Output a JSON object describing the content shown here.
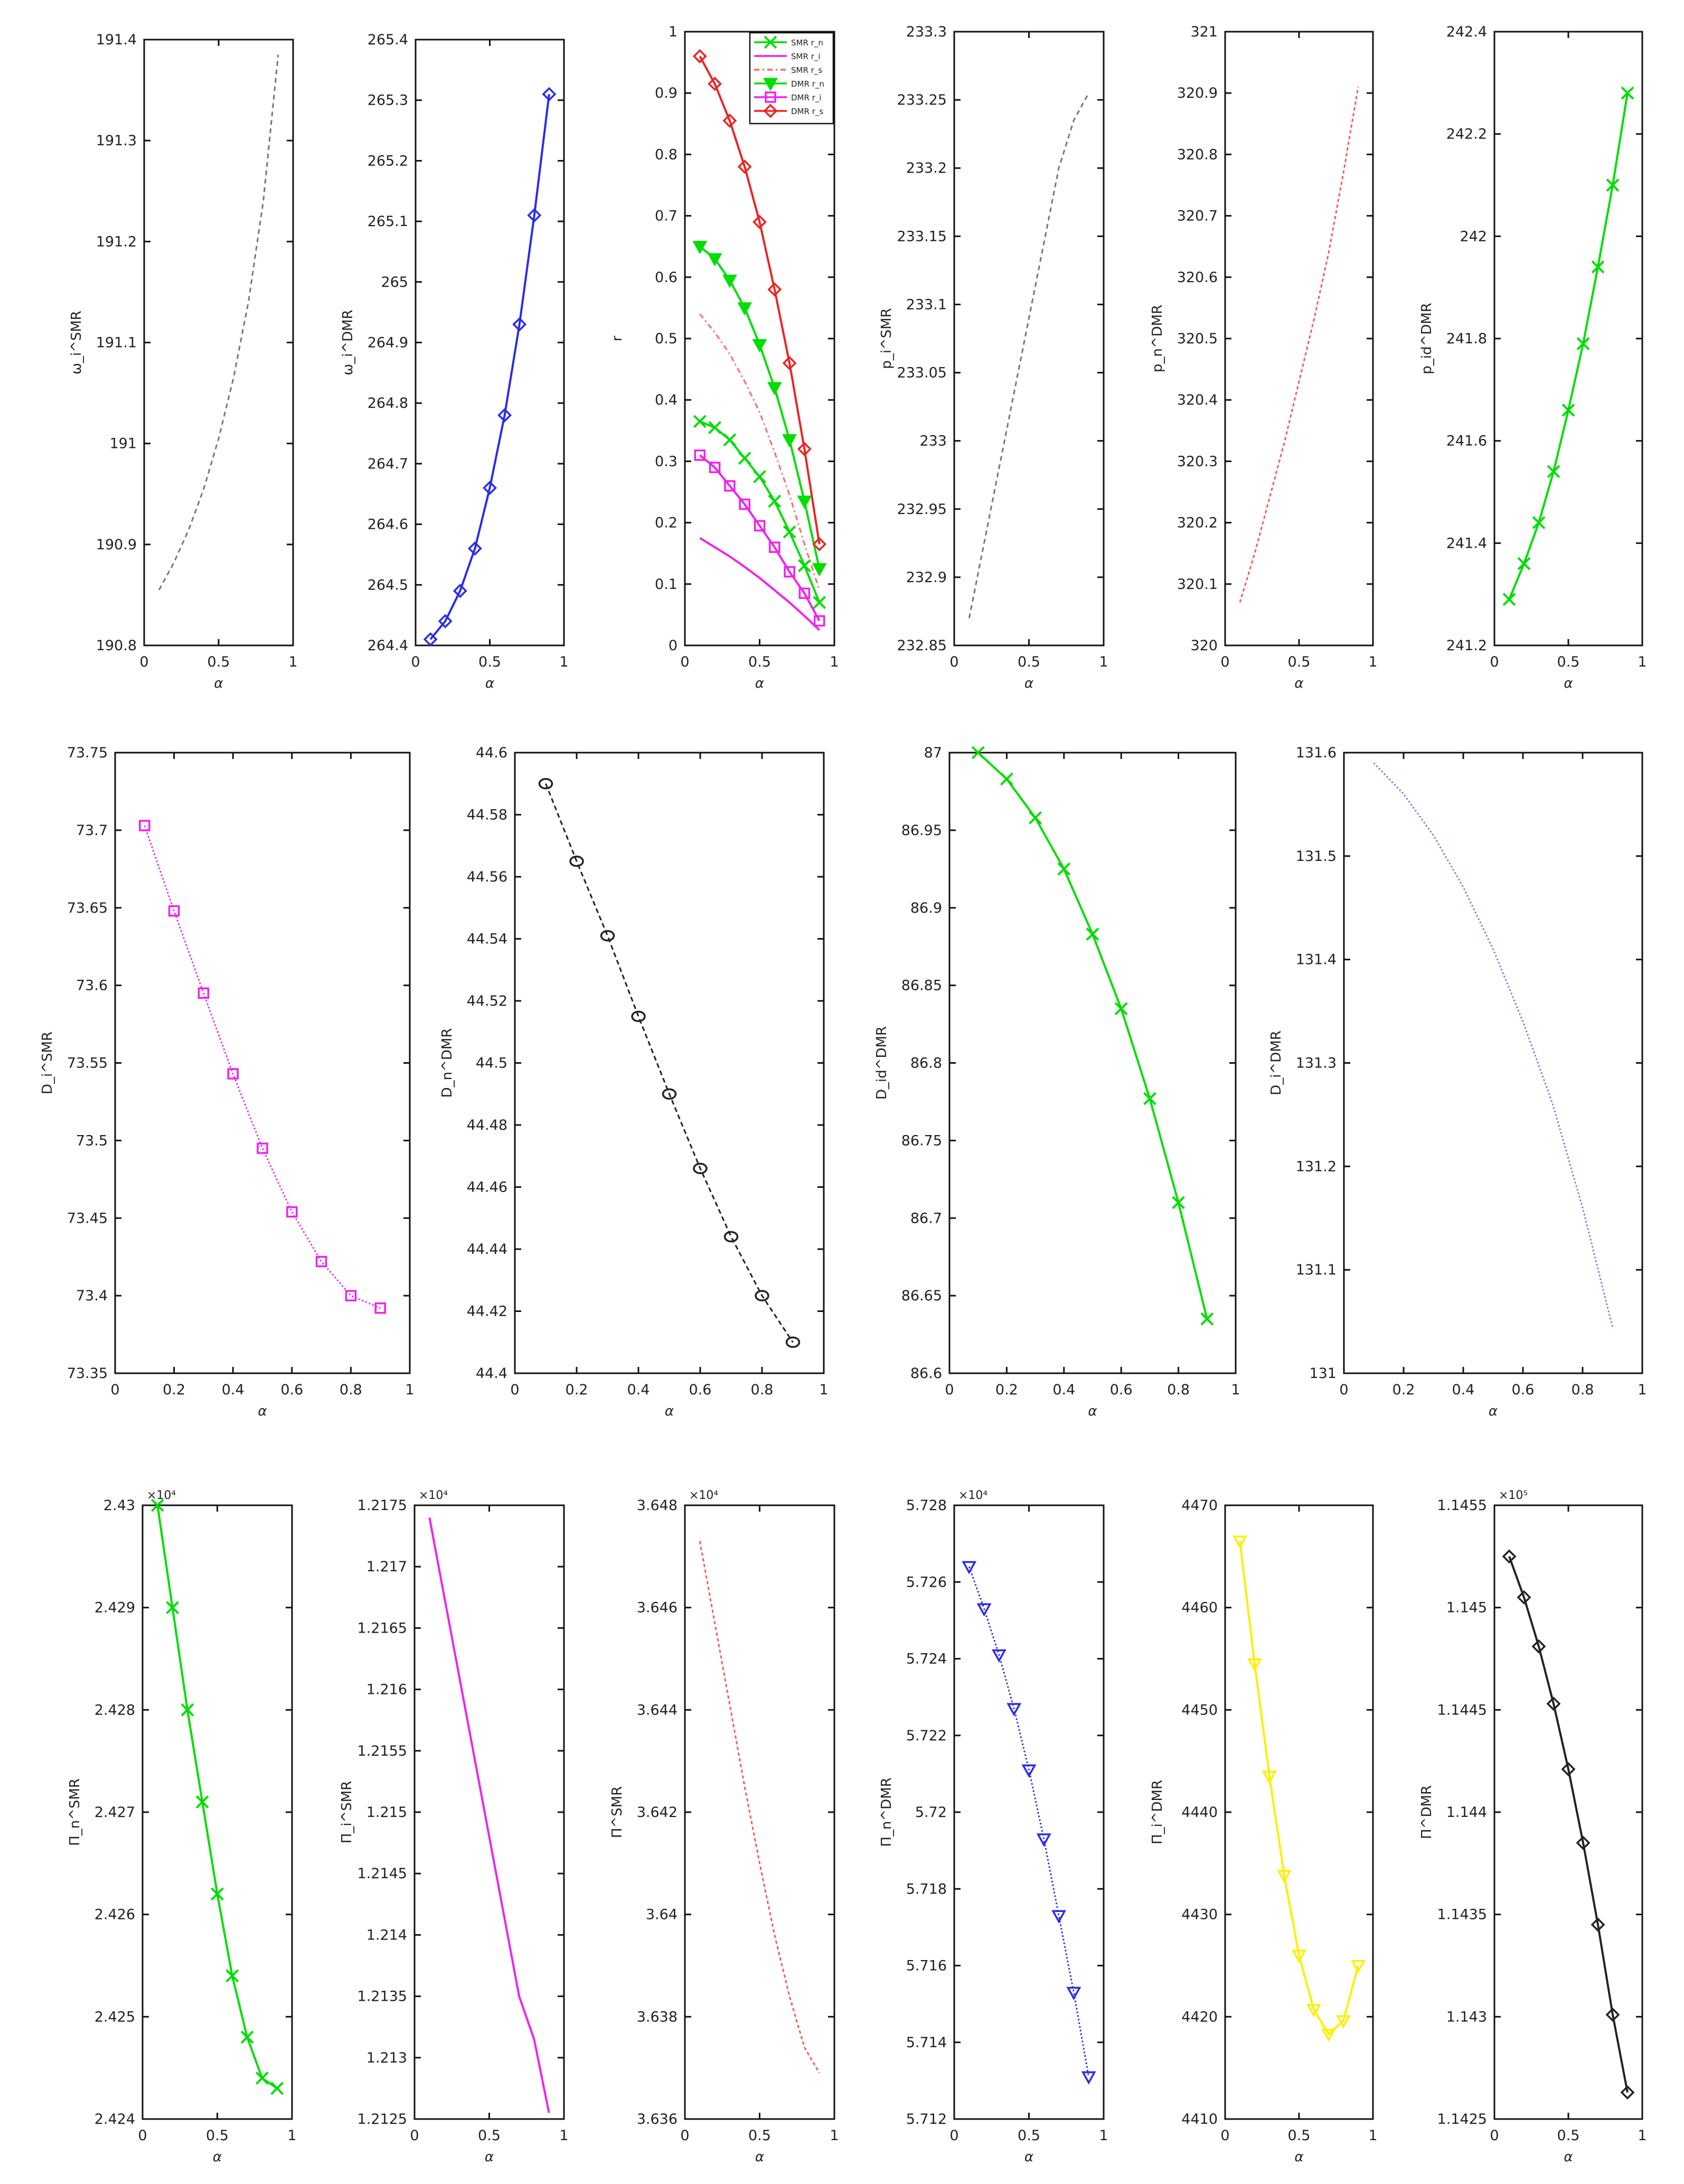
{
  "figure": {
    "title": "",
    "x_label_all": "α"
  },
  "chart_data": [
    {
      "id": "p1",
      "type": "line",
      "ylabel": "ω_i^SMR",
      "x": [
        0.1,
        0.2,
        0.3,
        0.4,
        0.5,
        0.6,
        0.7,
        0.8,
        0.9
      ],
      "y": [
        190.855,
        190.882,
        190.915,
        190.955,
        191.005,
        191.065,
        191.14,
        191.24,
        191.385
      ],
      "xlim": [
        0,
        1
      ],
      "ylim": [
        190.8,
        191.4
      ],
      "xticks": [
        "0",
        "0.5",
        "1"
      ],
      "yticks": [
        "190.8",
        "190.9",
        "191",
        "191.1",
        "191.2",
        "191.3",
        "191.4"
      ],
      "color": "#777777",
      "dash": "9,7",
      "marker": "none"
    },
    {
      "id": "p2",
      "type": "line",
      "ylabel": "ω_i^DMR",
      "x": [
        0.1,
        0.2,
        0.3,
        0.4,
        0.5,
        0.6,
        0.7,
        0.8,
        0.9
      ],
      "y": [
        264.41,
        264.44,
        264.49,
        264.56,
        264.66,
        264.78,
        264.93,
        265.11,
        265.31
      ],
      "xlim": [
        0,
        1
      ],
      "ylim": [
        264.4,
        265.4
      ],
      "xticks": [
        "0",
        "0.5",
        "1"
      ],
      "yticks": [
        "264.4",
        "264.5",
        "264.6",
        "264.7",
        "264.8",
        "264.9",
        "265",
        "265.1",
        "265.2",
        "265.3",
        "265.4"
      ],
      "color": "#2a2aee",
      "dash": "",
      "marker": "diamond"
    },
    {
      "id": "p3",
      "type": "line",
      "ylabel": "r",
      "x": [
        0.1,
        0.2,
        0.3,
        0.4,
        0.5,
        0.6,
        0.7,
        0.8,
        0.9
      ],
      "xlim": [
        0,
        1
      ],
      "ylim": [
        0,
        1
      ],
      "xticks": [
        "0",
        "0.5",
        "1"
      ],
      "yticks": [
        "0",
        "0.1",
        "0.2",
        "0.3",
        "0.4",
        "0.5",
        "0.6",
        "0.7",
        "0.8",
        "0.9",
        "1"
      ],
      "legend_position": "top-right",
      "series": [
        {
          "name": "SMR r_n",
          "color": "#00dd00",
          "dash": "",
          "marker": "x",
          "values": [
            0.365,
            0.355,
            0.335,
            0.305,
            0.275,
            0.235,
            0.185,
            0.13,
            0.07
          ]
        },
        {
          "name": "SMR r_i",
          "color": "#ee22ee",
          "dash": "",
          "marker": "none",
          "values": [
            0.175,
            0.16,
            0.145,
            0.128,
            0.11,
            0.09,
            0.07,
            0.048,
            0.025
          ]
        },
        {
          "name": "SMR r_s",
          "color": "#ff6666",
          "dash": "10,6,3,6",
          "marker": "none",
          "values": [
            0.54,
            0.51,
            0.475,
            0.43,
            0.38,
            0.315,
            0.245,
            0.165,
            0.09
          ]
        },
        {
          "name": "DMR r_n",
          "color": "#00dd00",
          "dash": "",
          "marker": "triangle-down",
          "values": [
            0.65,
            0.63,
            0.595,
            0.55,
            0.49,
            0.42,
            0.335,
            0.235,
            0.125
          ]
        },
        {
          "name": "DMR r_i",
          "color": "#ee22ee",
          "dash": "",
          "marker": "square",
          "values": [
            0.31,
            0.29,
            0.26,
            0.23,
            0.195,
            0.16,
            0.12,
            0.085,
            0.04
          ]
        },
        {
          "name": "DMR r_s",
          "color": "#ee2222",
          "dash": "",
          "marker": "diamond",
          "values": [
            0.96,
            0.915,
            0.855,
            0.78,
            0.69,
            0.58,
            0.46,
            0.32,
            0.165
          ]
        }
      ]
    },
    {
      "id": "p4",
      "type": "line",
      "ylabel": "p_i^SMR",
      "x": [
        0.1,
        0.2,
        0.3,
        0.4,
        0.5,
        0.6,
        0.7,
        0.8,
        0.9
      ],
      "y": [
        232.87,
        232.925,
        232.98,
        233.035,
        233.09,
        233.145,
        233.2,
        233.235,
        233.255
      ],
      "xlim": [
        0,
        1
      ],
      "ylim": [
        232.85,
        233.3
      ],
      "xticks": [
        "0",
        "0.5",
        "1"
      ],
      "yticks": [
        "232.85",
        "232.9",
        "232.95",
        "233",
        "233.05",
        "233.1",
        "233.15",
        "233.2",
        "233.25",
        "233.3"
      ],
      "color": "#777777",
      "dash": "9,7",
      "marker": "none"
    },
    {
      "id": "p5",
      "type": "line",
      "ylabel": "p_n^DMR",
      "x": [
        0.1,
        0.2,
        0.3,
        0.4,
        0.5,
        0.6,
        0.7,
        0.8,
        0.9
      ],
      "y": [
        320.07,
        320.15,
        320.24,
        320.33,
        320.43,
        320.53,
        320.64,
        320.77,
        320.91
      ],
      "xlim": [
        0,
        1
      ],
      "ylim": [
        320,
        321
      ],
      "xticks": [
        "0",
        "0.5",
        "1"
      ],
      "yticks": [
        "320",
        "320.1",
        "320.2",
        "320.3",
        "320.4",
        "320.5",
        "320.6",
        "320.7",
        "320.8",
        "320.9",
        "321"
      ],
      "color": "#ff5555",
      "dash": "6,5",
      "marker": "none"
    },
    {
      "id": "p6",
      "type": "line",
      "ylabel": "p_id^DMR",
      "x": [
        0.1,
        0.2,
        0.3,
        0.4,
        0.5,
        0.6,
        0.7,
        0.8,
        0.9
      ],
      "y": [
        241.29,
        241.36,
        241.44,
        241.54,
        241.66,
        241.79,
        241.94,
        242.1,
        242.28
      ],
      "xlim": [
        0,
        1
      ],
      "ylim": [
        241.2,
        242.4
      ],
      "xticks": [
        "0",
        "0.5",
        "1"
      ],
      "yticks": [
        "241.2",
        "241.4",
        "241.6",
        "241.8",
        "242",
        "242.2",
        "242.4"
      ],
      "color": "#00dd00",
      "dash": "",
      "marker": "x"
    },
    {
      "id": "p7",
      "type": "line",
      "ylabel": "D_i^SMR",
      "x": [
        0.1,
        0.2,
        0.3,
        0.4,
        0.5,
        0.6,
        0.7,
        0.8,
        0.9
      ],
      "y": [
        73.703,
        73.648,
        73.595,
        73.543,
        73.495,
        73.454,
        73.422,
        73.4,
        73.392
      ],
      "xlim": [
        0,
        1
      ],
      "ylim": [
        73.35,
        73.75
      ],
      "xticks": [
        "0",
        "0.2",
        "0.4",
        "0.6",
        "0.8",
        "1"
      ],
      "yticks": [
        "73.35",
        "73.4",
        "73.45",
        "73.5",
        "73.55",
        "73.6",
        "73.65",
        "73.7",
        "73.75"
      ],
      "color": "#ee22ee",
      "dash": "3,4",
      "marker": "square"
    },
    {
      "id": "p8",
      "type": "line",
      "ylabel": "D_n^DMR",
      "x": [
        0.1,
        0.2,
        0.3,
        0.4,
        0.5,
        0.6,
        0.7,
        0.8,
        0.9
      ],
      "y": [
        44.59,
        44.565,
        44.541,
        44.515,
        44.49,
        44.466,
        44.444,
        44.425,
        44.41
      ],
      "xlim": [
        0,
        1
      ],
      "ylim": [
        44.4,
        44.6
      ],
      "xticks": [
        "0",
        "0.2",
        "0.4",
        "0.6",
        "0.8",
        "1"
      ],
      "yticks": [
        "44.4",
        "44.42",
        "44.44",
        "44.46",
        "44.48",
        "44.5",
        "44.52",
        "44.54",
        "44.56",
        "44.58",
        "44.6"
      ],
      "color": "#222222",
      "dash": "9,6",
      "marker": "circle"
    },
    {
      "id": "p9",
      "type": "line",
      "ylabel": "D_id^DMR",
      "x": [
        0.1,
        0.2,
        0.3,
        0.4,
        0.5,
        0.6,
        0.7,
        0.8,
        0.9
      ],
      "y": [
        87.0,
        86.983,
        86.958,
        86.925,
        86.883,
        86.835,
        86.777,
        86.71,
        86.635
      ],
      "xlim": [
        0,
        1
      ],
      "ylim": [
        86.6,
        87
      ],
      "xticks": [
        "0",
        "0.2",
        "0.4",
        "0.6",
        "0.8",
        "1"
      ],
      "yticks": [
        "86.6",
        "86.65",
        "86.7",
        "86.75",
        "86.8",
        "86.85",
        "86.9",
        "86.95",
        "87"
      ],
      "color": "#00dd00",
      "dash": "",
      "marker": "x"
    },
    {
      "id": "p10",
      "type": "line",
      "ylabel": "D_i^DMR",
      "x": [
        0.1,
        0.2,
        0.3,
        0.4,
        0.5,
        0.6,
        0.7,
        0.8,
        0.9
      ],
      "y": [
        131.59,
        131.56,
        131.52,
        131.47,
        131.41,
        131.34,
        131.26,
        131.16,
        131.045
      ],
      "xlim": [
        0,
        1
      ],
      "ylim": [
        131,
        131.6
      ],
      "xticks": [
        "0",
        "0.2",
        "0.4",
        "0.6",
        "0.8",
        "1"
      ],
      "yticks": [
        "131",
        "131.1",
        "131.2",
        "131.3",
        "131.4",
        "131.5",
        "131.6"
      ],
      "color": "#7777ee",
      "dash": "3,4",
      "marker": "none"
    },
    {
      "id": "p11",
      "type": "line",
      "ylabel": "Π_n^SMR",
      "multiplier": "×10⁴",
      "x": [
        0.1,
        0.2,
        0.3,
        0.4,
        0.5,
        0.6,
        0.7,
        0.8,
        0.9
      ],
      "y": [
        2.43,
        2.429,
        2.428,
        2.4271,
        2.4262,
        2.4254,
        2.4248,
        2.4244,
        2.4243
      ],
      "xlim": [
        0,
        1
      ],
      "ylim": [
        2.424,
        2.43
      ],
      "xticks": [
        "0",
        "0.5",
        "1"
      ],
      "yticks": [
        "2.424",
        "2.425",
        "2.426",
        "2.427",
        "2.428",
        "2.429",
        "2.43"
      ],
      "color": "#00dd00",
      "dash": "",
      "marker": "x"
    },
    {
      "id": "p12",
      "type": "line",
      "ylabel": "Π_i^SMR",
      "multiplier": "×10⁴",
      "x": [
        0.1,
        0.2,
        0.3,
        0.4,
        0.5,
        0.6,
        0.7,
        0.8,
        0.9
      ],
      "y": [
        1.2174,
        1.21675,
        1.2161,
        1.21545,
        1.2148,
        1.21415,
        1.2135,
        1.21315,
        1.21255
      ],
      "xlim": [
        0,
        1
      ],
      "ylim": [
        1.2125,
        1.2175
      ],
      "xticks": [
        "0",
        "0.5",
        "1"
      ],
      "yticks": [
        "1.2125",
        "1.213",
        "1.2135",
        "1.214",
        "1.2145",
        "1.215",
        "1.2155",
        "1.216",
        "1.2165",
        "1.217",
        "1.2175"
      ],
      "color": "#ee22ee",
      "dash": "",
      "marker": "none"
    },
    {
      "id": "p13",
      "type": "line",
      "ylabel": "Π^SMR",
      "multiplier": "×10⁴",
      "x": [
        0.1,
        0.2,
        0.3,
        0.4,
        0.5,
        0.6,
        0.7,
        0.8,
        0.9
      ],
      "y": [
        3.6473,
        3.6457,
        3.6441,
        3.6425,
        3.641,
        3.6396,
        3.6384,
        3.6374,
        3.6369
      ],
      "xlim": [
        0,
        1
      ],
      "ylim": [
        3.636,
        3.648
      ],
      "xticks": [
        "0",
        "0.5",
        "1"
      ],
      "yticks": [
        "3.636",
        "3.638",
        "3.64",
        "3.642",
        "3.644",
        "3.646",
        "3.648"
      ],
      "color": "#ff5555",
      "dash": "6,5",
      "marker": "none"
    },
    {
      "id": "p14",
      "type": "line",
      "ylabel": "Π_n^DMR",
      "multiplier": "×10⁴",
      "x": [
        0.1,
        0.2,
        0.3,
        0.4,
        0.5,
        0.6,
        0.7,
        0.8,
        0.9
      ],
      "y": [
        5.7264,
        5.7253,
        5.7241,
        5.7227,
        5.7211,
        5.7193,
        5.7173,
        5.7153,
        5.7131
      ],
      "xlim": [
        0,
        1
      ],
      "ylim": [
        5.712,
        5.728
      ],
      "xticks": [
        "0",
        "0.5",
        "1"
      ],
      "yticks": [
        "5.712",
        "5.714",
        "5.716",
        "5.718",
        "5.72",
        "5.722",
        "5.724",
        "5.726",
        "5.728"
      ],
      "color": "#2a2aee",
      "dash": "3,4",
      "marker": "triangle-down"
    },
    {
      "id": "p15",
      "type": "line",
      "ylabel": "Π_i^DMR",
      "x": [
        0.1,
        0.2,
        0.3,
        0.4,
        0.5,
        0.6,
        0.7,
        0.8,
        0.9
      ],
      "y": [
        4466.5,
        4454.5,
        4443.5,
        4433.8,
        4426.0,
        4420.7,
        4418.3,
        4419.6,
        4425.0
      ],
      "xlim": [
        0,
        1
      ],
      "ylim": [
        4410,
        4470
      ],
      "xticks": [
        "0",
        "0.5",
        "1"
      ],
      "yticks": [
        "4410",
        "4420",
        "4430",
        "4440",
        "4450",
        "4460",
        "4470"
      ],
      "color": "#ffee00",
      "dash": "",
      "marker": "triangle-down"
    },
    {
      "id": "p16",
      "type": "line",
      "ylabel": "Π^DMR",
      "multiplier": "×10⁵",
      "x": [
        0.1,
        0.2,
        0.3,
        0.4,
        0.5,
        0.6,
        0.7,
        0.8,
        0.9
      ],
      "y": [
        1.14525,
        1.14505,
        1.14481,
        1.14453,
        1.14421,
        1.14385,
        1.14345,
        1.14301,
        1.14263
      ],
      "xlim": [
        0,
        1
      ],
      "ylim": [
        1.1425,
        1.1455
      ],
      "xticks": [
        "0",
        "0.5",
        "1"
      ],
      "yticks": [
        "1.1425",
        "1.143",
        "1.1435",
        "1.144",
        "1.1445",
        "1.145",
        "1.1455"
      ],
      "color": "#222222",
      "dash": "",
      "marker": "diamond"
    }
  ]
}
